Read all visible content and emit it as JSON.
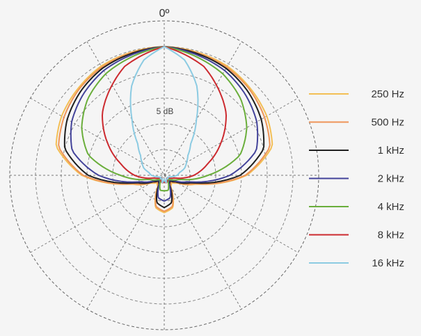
{
  "chart_data": {
    "type": "polar",
    "angle_label": "0º",
    "ring_label": "5 dB",
    "grid": true,
    "legend_position": "right",
    "series": [
      {
        "name": "250 Hz",
        "color": "#f3bf55",
        "angles": [
          0,
          30,
          45,
          60,
          75,
          90,
          105,
          120,
          135,
          150,
          165,
          180,
          195,
          210,
          225,
          240,
          255,
          270,
          285,
          300,
          315,
          330
        ],
        "levels": [
          5.0,
          4.9,
          4.75,
          4.6,
          4.35,
          3.2,
          1.3,
          0.6,
          0.4,
          0.5,
          1.3,
          1.45,
          1.3,
          0.5,
          0.4,
          0.6,
          1.3,
          3.2,
          4.35,
          4.6,
          4.75,
          4.9
        ]
      },
      {
        "name": "500 Hz",
        "color": "#ee9457",
        "angles": [
          0,
          30,
          45,
          60,
          75,
          90,
          105,
          120,
          135,
          150,
          165,
          180,
          195,
          210,
          225,
          240,
          255,
          270,
          285,
          300,
          315,
          330
        ],
        "levels": [
          5.0,
          4.85,
          4.7,
          4.5,
          4.25,
          3.15,
          1.25,
          0.55,
          0.35,
          0.45,
          1.25,
          1.4,
          1.25,
          0.45,
          0.35,
          0.55,
          1.25,
          3.15,
          4.25,
          4.5,
          4.7,
          4.85
        ]
      },
      {
        "name": "1 kHz",
        "color": "#1f1f1f",
        "angles": [
          0,
          30,
          45,
          60,
          75,
          90,
          105,
          120,
          135,
          150,
          165,
          180,
          195,
          210,
          225,
          240,
          255,
          270,
          285,
          300,
          315,
          330
        ],
        "levels": [
          5.0,
          4.8,
          4.6,
          4.35,
          4.0,
          2.95,
          1.1,
          0.5,
          0.3,
          0.4,
          1.1,
          1.25,
          1.1,
          0.4,
          0.3,
          0.5,
          1.1,
          2.95,
          4.0,
          4.35,
          4.6,
          4.8
        ]
      },
      {
        "name": "2 kHz",
        "color": "#43439a",
        "angles": [
          0,
          30,
          45,
          60,
          75,
          90,
          105,
          120,
          135,
          150,
          165,
          180,
          195,
          210,
          225,
          240,
          255,
          270,
          285,
          300,
          315,
          330
        ],
        "levels": [
          5.0,
          4.7,
          4.45,
          4.15,
          3.7,
          2.55,
          0.95,
          0.4,
          0.25,
          0.35,
          0.9,
          1.0,
          0.9,
          0.35,
          0.25,
          0.4,
          0.95,
          2.55,
          3.7,
          4.15,
          4.45,
          4.7
        ]
      },
      {
        "name": "4 kHz",
        "color": "#6aae3b",
        "angles": [
          0,
          30,
          45,
          60,
          75,
          90,
          105,
          120,
          135,
          150,
          165,
          180,
          195,
          210,
          225,
          240,
          255,
          270,
          285,
          300,
          315,
          330
        ],
        "levels": [
          5.0,
          4.55,
          4.2,
          3.7,
          3.05,
          1.7,
          0.6,
          0.35,
          0.2,
          0.3,
          0.6,
          0.6,
          0.6,
          0.3,
          0.2,
          0.35,
          0.6,
          1.7,
          3.05,
          3.7,
          4.2,
          4.55
        ]
      },
      {
        "name": "8 kHz",
        "color": "#cc2a2f",
        "angles": [
          0,
          20,
          30,
          45,
          60,
          75,
          90,
          105,
          120,
          135,
          150,
          165,
          180,
          195,
          210,
          225,
          240,
          255,
          270,
          285,
          300,
          315,
          330,
          340
        ],
        "levels": [
          5.0,
          4.5,
          4.05,
          3.4,
          2.55,
          1.75,
          1.15,
          0.4,
          0.2,
          0.15,
          0.25,
          0.3,
          0.25,
          0.3,
          0.25,
          0.15,
          0.2,
          0.4,
          1.15,
          1.75,
          2.55,
          3.4,
          4.05,
          4.5
        ]
      },
      {
        "name": "16 kHz",
        "color": "#8ccbe2",
        "angles": [
          0,
          10,
          20,
          30,
          40,
          50,
          60,
          70,
          80,
          90,
          100,
          110,
          120,
          135,
          150,
          165,
          180,
          195,
          210,
          225,
          240,
          250,
          260,
          270,
          280,
          290,
          300,
          310,
          320,
          330,
          340,
          350
        ],
        "levels": [
          5.0,
          4.55,
          3.7,
          2.5,
          1.6,
          1.2,
          1.0,
          0.85,
          0.6,
          0.5,
          0.3,
          0.2,
          0.15,
          0.2,
          0.15,
          0.3,
          0.15,
          0.3,
          0.15,
          0.2,
          0.15,
          0.2,
          0.3,
          0.5,
          0.6,
          0.85,
          1.0,
          1.2,
          1.6,
          2.5,
          3.7,
          4.55
        ]
      }
    ]
  }
}
